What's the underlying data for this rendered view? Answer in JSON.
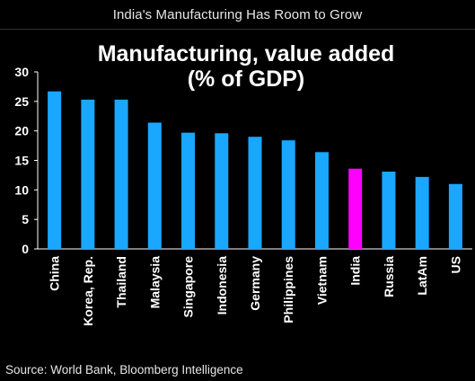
{
  "header": {
    "title": "India's Manufacturing Has Room to Grow"
  },
  "footer": {
    "source": "Source: World Bank, Bloomberg Intelligence"
  },
  "colors": {
    "bar": "#1aa7ff",
    "highlight": "#ff00ff",
    "background": "#000000",
    "text": "#ffffff"
  },
  "chart_data": {
    "type": "bar",
    "title": "Manufacturing, value added",
    "subtitle": "(% of GDP)",
    "categories": [
      "China",
      "Korea, Rep.",
      "Thailand",
      "Malaysia",
      "Singapore",
      "Indonesia",
      "Germany",
      "Philippines",
      "Vietnam",
      "India",
      "Russia",
      "LatAm",
      "US"
    ],
    "values": [
      26.7,
      25.3,
      25.3,
      21.4,
      19.7,
      19.6,
      19.0,
      18.4,
      16.4,
      13.6,
      13.1,
      12.2,
      11.0
    ],
    "highlight": "India",
    "ylim": [
      0,
      30
    ],
    "yticks": [
      0,
      5,
      10,
      15,
      20,
      25,
      30
    ],
    "grid": false,
    "legend": "none"
  }
}
